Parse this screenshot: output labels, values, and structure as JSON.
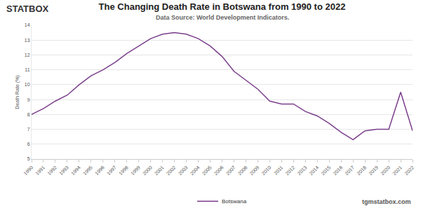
{
  "chart_data": {
    "type": "line",
    "title": "The Changing Death Rate in Botswana from 1990 to 2022",
    "subtitle": "Data Source: World Development Indicators.",
    "y_label": "Death Rate (%)",
    "logo": "STATBOX",
    "watermark": "tgmstatbox.com",
    "categories": [
      "1990",
      "1991",
      "1992",
      "1993",
      "1994",
      "1995",
      "1996",
      "1997",
      "1998",
      "1999",
      "2000",
      "2001",
      "2002",
      "2003",
      "2004",
      "2005",
      "2006",
      "2007",
      "2008",
      "2009",
      "2010",
      "2011",
      "2012",
      "2013",
      "2014",
      "2015",
      "2016",
      "2017",
      "2018",
      "2019",
      "2020",
      "2021",
      "2022"
    ],
    "series": [
      {
        "name": "Botswana",
        "color": "#7b3f8c",
        "values": [
          8.0,
          8.4,
          8.9,
          9.3,
          10.0,
          10.6,
          11.0,
          11.5,
          12.1,
          12.6,
          13.1,
          13.4,
          13.5,
          13.4,
          13.1,
          12.6,
          11.9,
          10.9,
          10.3,
          9.7,
          8.9,
          8.7,
          8.7,
          8.2,
          7.9,
          7.4,
          6.8,
          6.3,
          6.9,
          7.0,
          7.0,
          9.5,
          6.9
        ]
      }
    ],
    "ylim": [
      5,
      14
    ],
    "yticks": [
      5,
      6,
      7,
      8,
      9,
      10,
      11,
      12,
      13,
      14
    ],
    "grid": true,
    "legend": "bottom"
  }
}
